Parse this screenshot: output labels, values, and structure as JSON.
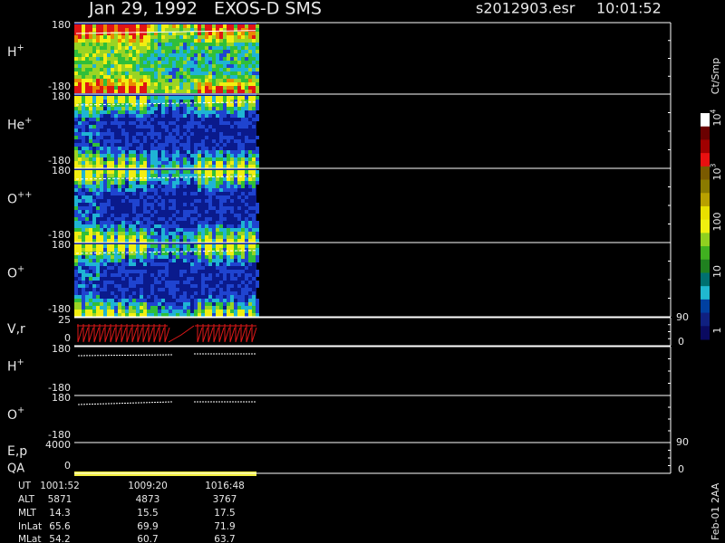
{
  "header": {
    "title": "Jan 29, 1992   EXOS-D SMS",
    "file": "s2012903.esr",
    "time": "10:01:52"
  },
  "panels": [
    {
      "label": "H",
      "sup": "+",
      "top": 180,
      "bottom": -180
    },
    {
      "label": "He",
      "sup": "+",
      "top": 180,
      "bottom": -180
    },
    {
      "label": "O",
      "sup": "++",
      "top": 180,
      "bottom": -180
    },
    {
      "label": "O",
      "sup": "+",
      "top": 180,
      "bottom": -180
    },
    {
      "label": "V,r",
      "top": 25,
      "bottom": 0,
      "right_top": 90,
      "right_bottom": 0
    },
    {
      "label": "H",
      "sup": "+",
      "top": 180,
      "bottom": -180
    },
    {
      "label": "O",
      "sup": "+",
      "top": 180,
      "bottom": -180
    },
    {
      "label": "E,p",
      "label2": "QA",
      "top": 4000,
      "bottom": 0,
      "right_top": 90,
      "right_bottom": 0
    }
  ],
  "colorbar": {
    "unit": "Ct/Smp",
    "labels": [
      {
        "base": "10",
        "sup": "4"
      },
      {
        "base": "10",
        "sup": "3"
      },
      "100",
      "10",
      "1"
    ]
  },
  "footer": {
    "rows": [
      [
        "UT",
        "1001:52",
        "1009:20",
        "1016:48"
      ],
      [
        "ALT",
        "5871",
        "4873",
        "3767"
      ],
      [
        "MLT",
        "14.3",
        "15.5",
        "17.5"
      ],
      [
        "InLat",
        "65.6",
        "69.9",
        "71.9"
      ],
      [
        "MLat",
        "54.2",
        "60.7",
        "63.7"
      ]
    ],
    "code": "Feb-01 2AA"
  }
}
